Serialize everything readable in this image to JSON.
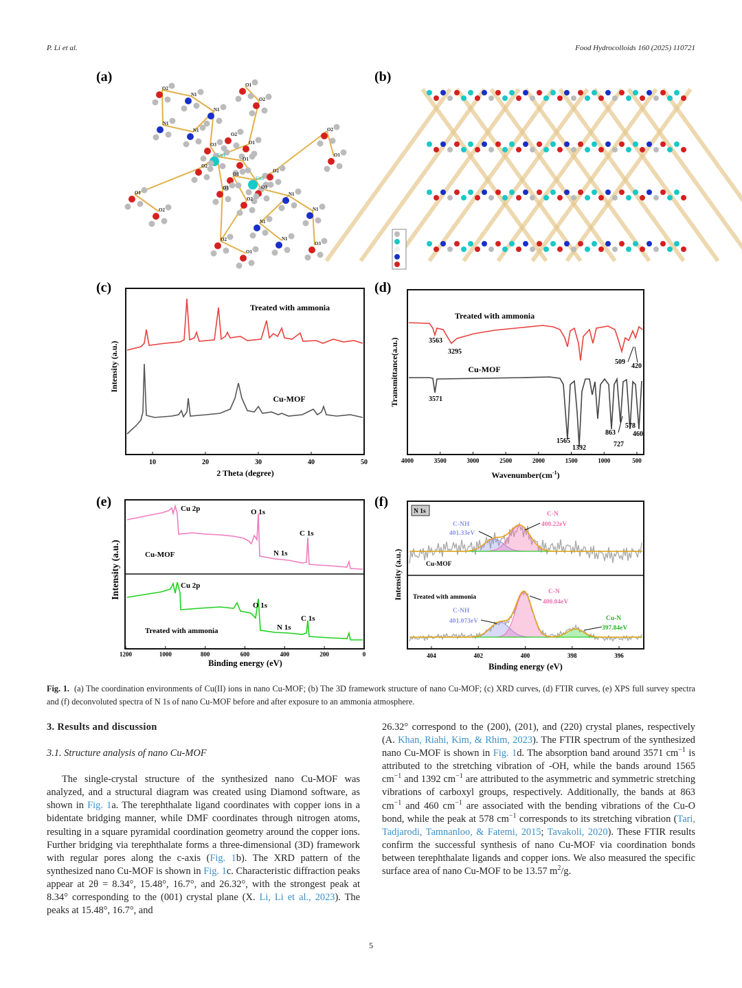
{
  "header": {
    "authors": "P. Li et al.",
    "journal": "Food Hydrocolloids 160 (2025) 110721"
  },
  "figure": {
    "panel_a": {
      "label": "(a)",
      "atom_labels": [
        "O2",
        "N1",
        "O1",
        "O2",
        "N1",
        "N1",
        "N1",
        "O2",
        "O1",
        "O3",
        "Cu1",
        "O1",
        "O2",
        "O1",
        "Cu1",
        "O2",
        "O3",
        "O1",
        "O2",
        "O1",
        "O2",
        "N1",
        "N1",
        "N1",
        "N1",
        "O3",
        "O2",
        "O1",
        "O2",
        "O1"
      ]
    },
    "panel_b": {
      "label": "(b)"
    },
    "panel_c": {
      "label": "(c)",
      "y_label": "Intensity (a.u.)",
      "x_label": "2 Theta (degree)",
      "xticks": [
        10,
        20,
        30,
        40,
        50
      ],
      "annotations": [
        "Treated with ammonia",
        "Cu-MOF"
      ]
    },
    "panel_d": {
      "label": "(d)",
      "y_label": "Transmittance(a.u.)",
      "x_label": {
        "text": "Wavenumber(cm",
        "sup": "-1",
        "end": ")"
      },
      "xticks": [
        4000,
        3500,
        3000,
        2500,
        2000,
        1500,
        1000,
        500
      ],
      "annotations": [
        "Treated with ammonia",
        "3563",
        "3295",
        "509",
        "420",
        "Cu-MOF",
        "3571",
        "1565",
        "1392",
        "863",
        "578",
        "727",
        "460"
      ]
    },
    "panel_e": {
      "label": "(e)",
      "y_label": "Intensity (a.u.)",
      "x_label": "Binding energy (eV)",
      "xticks": [
        1200,
        1000,
        800,
        600,
        400,
        200,
        0
      ],
      "annotations": [
        "Cu 2p",
        "O 1s",
        "C 1s",
        "N 1s",
        "Cu-MOF",
        "Cu 2p",
        "O 1s",
        "N 1s",
        "C 1s",
        "Treated with ammonia"
      ]
    },
    "panel_f": {
      "label": "(f)",
      "y_label": "Intensity (a.u.)",
      "x_label": "Binding energy (eV)",
      "xticks": [
        404,
        402,
        400,
        398,
        396
      ],
      "annotations": [
        "N 1s",
        "C-NH",
        "401.33eV",
        "C-N",
        "400.22eV",
        "Cu-MOF",
        "Treated with ammonia",
        "C-NH",
        "401.073eV",
        "C-N",
        "400.04eV",
        "Cu-N",
        "397.84eV"
      ]
    }
  },
  "caption": {
    "label": "Fig. 1.",
    "text": "(a) The coordination environments of Cu(II) ions in nano Cu-MOF; (b) The 3D framework structure of nano Cu-MOF; (c) XRD curves, (d) FTIR curves, (e) XPS full survey spectra and (f) deconvoluted spectra of N 1s of nano Cu-MOF before and after exposure to an ammonia atmosphere."
  },
  "section": {
    "heading": "3. Results and discussion",
    "subheading": "3.1. Structure analysis of nano Cu-MOF"
  },
  "body_left": [
    {
      "text": "The single-crystal structure of the synthesized nano Cu-MOF was analyzed, and a structural diagram was created using Diamond software, as shown in "
    },
    {
      "text": "Fig. 1",
      "style": "link"
    },
    {
      "text": "a. The terephthalate ligand coordinates with copper ions in a bidentate bridging manner, while DMF coordinates through nitrogen atoms, resulting in a square pyramidal coordination geometry around the copper ions. Further bridging via terephthalate forms a three-dimensional (3D) framework with regular pores along the c-axis ("
    },
    {
      "text": "Fig. 1",
      "style": "link"
    },
    {
      "text": "b). The XRD pattern of the synthesized nano Cu-MOF is shown in "
    },
    {
      "text": "Fig. 1",
      "style": "link"
    },
    {
      "text": "c. Characteristic diffraction peaks appear at 2θ = 8.34°, 15.48°, 16.7°, and 26.32°, with the strongest peak at 8.34° corresponding to the (001) crystal plane (X. "
    },
    {
      "text": "Li, Li et al., 2023",
      "style": "link"
    },
    {
      "text": "). The peaks at 15.48°, 16.7°, and"
    }
  ],
  "body_right": [
    {
      "text": "26.32° correspond to the (200), (201), and (220) crystal planes, respectively (A. "
    },
    {
      "text": "Khan, Riahi, Kim, & Rhim, 2023",
      "style": "link"
    },
    {
      "text": "). The FTIR spectrum of the synthesized nano Cu-MOF is shown in "
    },
    {
      "text": "Fig. 1",
      "style": "link"
    },
    {
      "text": "d. The absorption band around 3571 cm"
    },
    {
      "text": "−1",
      "style": "sup"
    },
    {
      "text": " is attributed to the stretching vibration of -OH, while the bands around 1565 cm"
    },
    {
      "text": "−1",
      "style": "sup"
    },
    {
      "text": " and 1392 cm"
    },
    {
      "text": "−1",
      "style": "sup"
    },
    {
      "text": " are attributed to the asymmetric and symmetric stretching vibrations of carboxyl groups, respectively. Additionally, the bands at 863 cm"
    },
    {
      "text": "−1",
      "style": "sup"
    },
    {
      "text": " and 460 cm"
    },
    {
      "text": "−1",
      "style": "sup"
    },
    {
      "text": " are associated with the bending vibrations of the Cu-O bond, while the peak at 578 cm"
    },
    {
      "text": "−1",
      "style": "sup"
    },
    {
      "text": " corresponds to its stretching vibration ("
    },
    {
      "text": "Tari, Tadjarodi, Tamnanloo, & Fatemi, 2015",
      "style": "link"
    },
    {
      "text": "; "
    },
    {
      "text": "Tavakoli, 2020",
      "style": "link"
    },
    {
      "text": "). These FTIR results confirm the successful synthesis of nano Cu-MOF via coordination bonds between terephthalate ligands and copper ions. We also measured the specific surface area of nano Cu-MOF to be 13.57 m"
    },
    {
      "text": "2",
      "style": "sup"
    },
    {
      "text": "/g."
    }
  ],
  "page_number": "5"
}
